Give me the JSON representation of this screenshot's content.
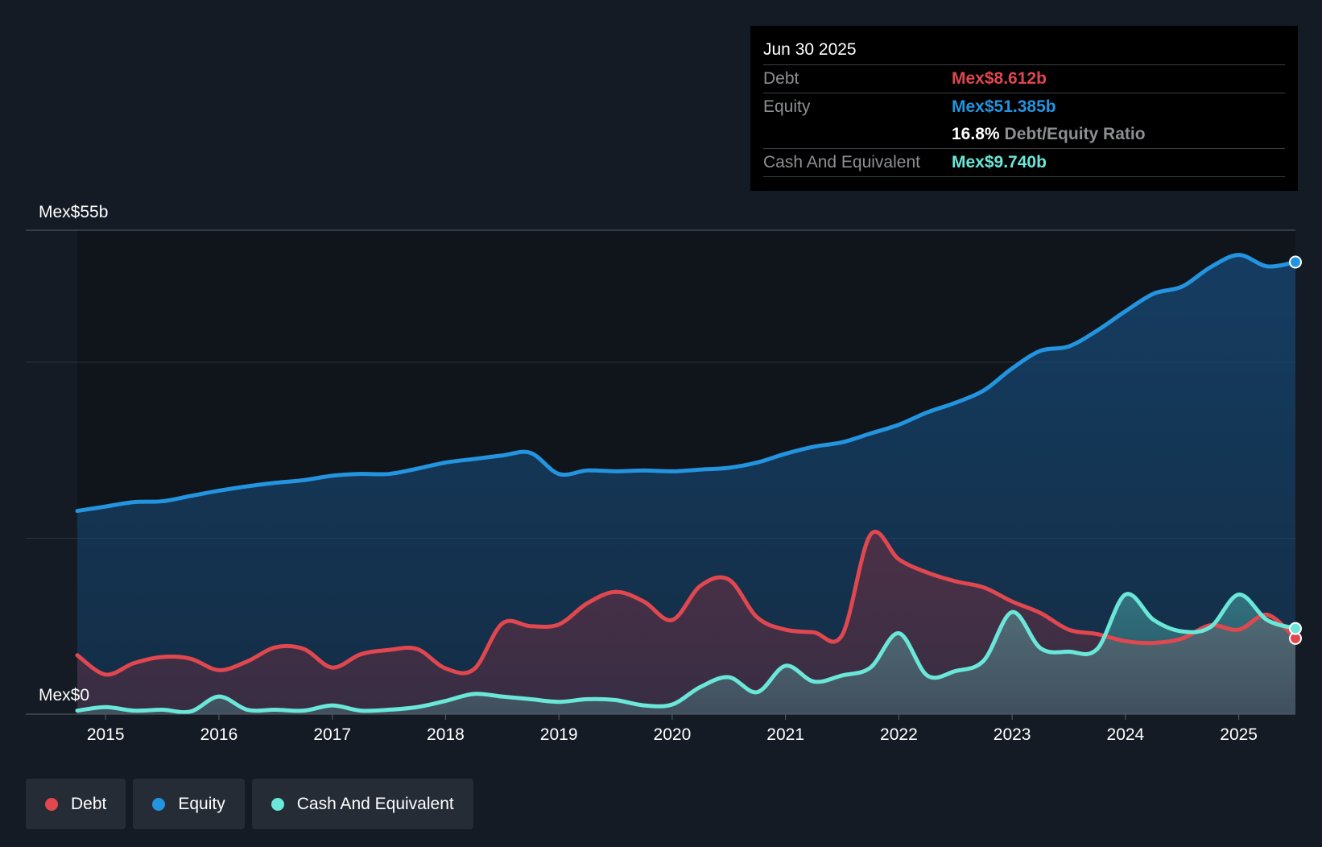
{
  "tooltip": {
    "date": "Jun 30 2025",
    "debt_label": "Debt",
    "debt_value": "Mex$8.612b",
    "equity_label": "Equity",
    "equity_value": "Mex$51.385b",
    "ratio_value": "16.8%",
    "ratio_label": "Debt/Equity Ratio",
    "cash_label": "Cash And Equivalent",
    "cash_value": "Mex$9.740b"
  },
  "legend": {
    "debt": "Debt",
    "equity": "Equity",
    "cash": "Cash And Equivalent"
  },
  "colors": {
    "debt": "#e0474f",
    "equity": "#2394df",
    "cash": "#6ae7d8"
  },
  "chart_data": {
    "type": "area",
    "title": "",
    "xlabel": "",
    "ylabel": "",
    "ylim": [
      0,
      55
    ],
    "y_unit": "Mex$ billions",
    "y_tick_labels": [
      "Mex$0",
      "Mex$55b"
    ],
    "x_tick_labels": [
      "2015",
      "2016",
      "2017",
      "2018",
      "2019",
      "2020",
      "2021",
      "2022",
      "2023",
      "2024",
      "2025"
    ],
    "xlim": [
      2014.75,
      2025.5
    ],
    "series": [
      {
        "name": "Equity",
        "points": [
          [
            2014.75,
            23.1
          ],
          [
            2015.0,
            23.6
          ],
          [
            2015.25,
            24.1
          ],
          [
            2015.5,
            24.2
          ],
          [
            2015.75,
            24.8
          ],
          [
            2016.0,
            25.4
          ],
          [
            2016.25,
            25.9
          ],
          [
            2016.5,
            26.3
          ],
          [
            2016.75,
            26.6
          ],
          [
            2017.0,
            27.1
          ],
          [
            2017.25,
            27.3
          ],
          [
            2017.5,
            27.3
          ],
          [
            2017.75,
            27.9
          ],
          [
            2018.0,
            28.6
          ],
          [
            2018.25,
            29.0
          ],
          [
            2018.5,
            29.4
          ],
          [
            2018.75,
            29.7
          ],
          [
            2019.0,
            27.3
          ],
          [
            2019.25,
            27.7
          ],
          [
            2019.5,
            27.6
          ],
          [
            2019.75,
            27.7
          ],
          [
            2020.0,
            27.6
          ],
          [
            2020.25,
            27.8
          ],
          [
            2020.5,
            28.0
          ],
          [
            2020.75,
            28.6
          ],
          [
            2021.0,
            29.6
          ],
          [
            2021.25,
            30.4
          ],
          [
            2021.5,
            30.9
          ],
          [
            2021.75,
            31.9
          ],
          [
            2022.0,
            32.9
          ],
          [
            2022.25,
            34.3
          ],
          [
            2022.5,
            35.4
          ],
          [
            2022.75,
            36.8
          ],
          [
            2023.0,
            39.3
          ],
          [
            2023.25,
            41.3
          ],
          [
            2023.5,
            41.8
          ],
          [
            2023.75,
            43.6
          ],
          [
            2024.0,
            45.8
          ],
          [
            2024.25,
            47.8
          ],
          [
            2024.5,
            48.6
          ],
          [
            2024.75,
            50.8
          ],
          [
            2025.0,
            52.2
          ],
          [
            2025.25,
            50.9
          ],
          [
            2025.5,
            51.385
          ]
        ]
      },
      {
        "name": "Debt",
        "points": [
          [
            2014.75,
            6.7
          ],
          [
            2015.0,
            4.5
          ],
          [
            2015.25,
            5.8
          ],
          [
            2015.5,
            6.5
          ],
          [
            2015.75,
            6.3
          ],
          [
            2016.0,
            5.0
          ],
          [
            2016.25,
            6.0
          ],
          [
            2016.5,
            7.6
          ],
          [
            2016.75,
            7.4
          ],
          [
            2017.0,
            5.3
          ],
          [
            2017.25,
            6.8
          ],
          [
            2017.5,
            7.3
          ],
          [
            2017.75,
            7.4
          ],
          [
            2018.0,
            5.2
          ],
          [
            2018.25,
            5.1
          ],
          [
            2018.5,
            10.3
          ],
          [
            2018.75,
            10.0
          ],
          [
            2019.0,
            10.2
          ],
          [
            2019.25,
            12.6
          ],
          [
            2019.5,
            13.9
          ],
          [
            2019.75,
            12.8
          ],
          [
            2020.0,
            10.7
          ],
          [
            2020.25,
            14.6
          ],
          [
            2020.5,
            15.3
          ],
          [
            2020.75,
            11.0
          ],
          [
            2021.0,
            9.6
          ],
          [
            2021.25,
            9.3
          ],
          [
            2021.5,
            9.0
          ],
          [
            2021.75,
            20.4
          ],
          [
            2022.0,
            17.6
          ],
          [
            2022.25,
            16.1
          ],
          [
            2022.5,
            15.1
          ],
          [
            2022.75,
            14.4
          ],
          [
            2023.0,
            12.8
          ],
          [
            2023.25,
            11.5
          ],
          [
            2023.5,
            9.6
          ],
          [
            2023.75,
            9.1
          ],
          [
            2024.0,
            8.3
          ],
          [
            2024.25,
            8.1
          ],
          [
            2024.5,
            8.6
          ],
          [
            2024.75,
            10.1
          ],
          [
            2025.0,
            9.6
          ],
          [
            2025.25,
            11.3
          ],
          [
            2025.5,
            8.612
          ]
        ]
      },
      {
        "name": "Cash And Equivalent",
        "points": [
          [
            2014.75,
            0.4
          ],
          [
            2015.0,
            0.8
          ],
          [
            2015.25,
            0.4
          ],
          [
            2015.5,
            0.5
          ],
          [
            2015.75,
            0.3
          ],
          [
            2016.0,
            2.0
          ],
          [
            2016.25,
            0.5
          ],
          [
            2016.5,
            0.5
          ],
          [
            2016.75,
            0.4
          ],
          [
            2017.0,
            1.0
          ],
          [
            2017.25,
            0.4
          ],
          [
            2017.5,
            0.5
          ],
          [
            2017.75,
            0.8
          ],
          [
            2018.0,
            1.5
          ],
          [
            2018.25,
            2.3
          ],
          [
            2018.5,
            2.0
          ],
          [
            2018.75,
            1.7
          ],
          [
            2019.0,
            1.4
          ],
          [
            2019.25,
            1.7
          ],
          [
            2019.5,
            1.6
          ],
          [
            2019.75,
            1.0
          ],
          [
            2020.0,
            1.1
          ],
          [
            2020.25,
            3.1
          ],
          [
            2020.5,
            4.2
          ],
          [
            2020.75,
            2.5
          ],
          [
            2021.0,
            5.5
          ],
          [
            2021.25,
            3.7
          ],
          [
            2021.5,
            4.4
          ],
          [
            2021.75,
            5.3
          ],
          [
            2022.0,
            9.2
          ],
          [
            2022.25,
            4.4
          ],
          [
            2022.5,
            4.9
          ],
          [
            2022.75,
            6.1
          ],
          [
            2023.0,
            11.6
          ],
          [
            2023.25,
            7.5
          ],
          [
            2023.5,
            7.1
          ],
          [
            2023.75,
            7.4
          ],
          [
            2024.0,
            13.6
          ],
          [
            2024.25,
            10.7
          ],
          [
            2024.5,
            9.4
          ],
          [
            2024.75,
            9.9
          ],
          [
            2025.0,
            13.6
          ],
          [
            2025.25,
            10.7
          ],
          [
            2025.5,
            9.74
          ]
        ]
      }
    ]
  }
}
